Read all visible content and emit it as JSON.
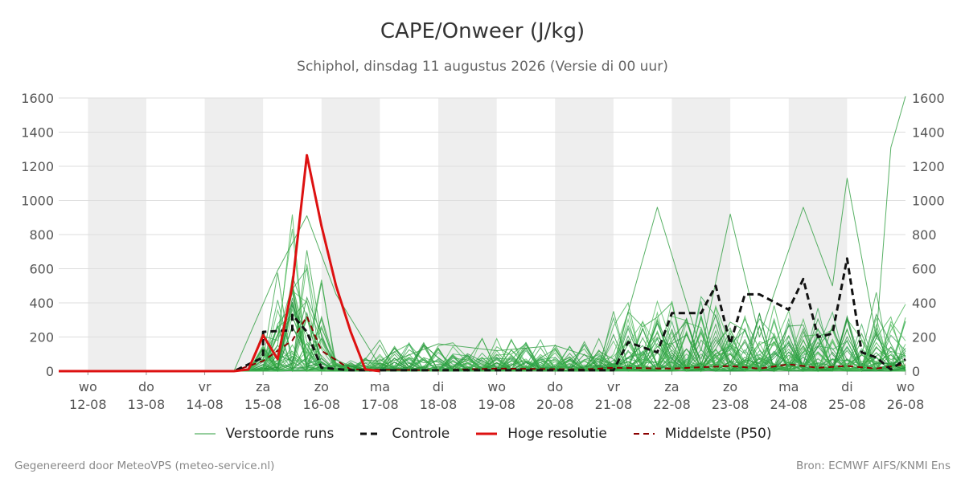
{
  "chart_data": {
    "type": "line",
    "title": "CAPE/Onweer (J/kg)",
    "subtitle": "Schiphol, dinsdag 11 augustus 2026 (Versie di 00 uur)",
    "ylim": [
      0,
      1600
    ],
    "yticks": [
      0,
      200,
      400,
      600,
      800,
      1000,
      1200,
      1400,
      1600
    ],
    "x_range": [
      "2026-08-11T12:00",
      "2026-08-26T00:00"
    ],
    "x_ticks": [
      {
        "date": "2026-08-12",
        "day": "wo",
        "label": "12-08"
      },
      {
        "date": "2026-08-13",
        "day": "do",
        "label": "13-08"
      },
      {
        "date": "2026-08-14",
        "day": "vr",
        "label": "14-08"
      },
      {
        "date": "2026-08-15",
        "day": "za",
        "label": "15-08"
      },
      {
        "date": "2026-08-16",
        "day": "zo",
        "label": "16-08"
      },
      {
        "date": "2026-08-17",
        "day": "ma",
        "label": "17-08"
      },
      {
        "date": "2026-08-18",
        "day": "di",
        "label": "18-08"
      },
      {
        "date": "2026-08-19",
        "day": "wo",
        "label": "19-08"
      },
      {
        "date": "2026-08-20",
        "day": "do",
        "label": "20-08"
      },
      {
        "date": "2026-08-21",
        "day": "vr",
        "label": "21-08"
      },
      {
        "date": "2026-08-22",
        "day": "za",
        "label": "22-08"
      },
      {
        "date": "2026-08-23",
        "day": "zo",
        "label": "23-08"
      },
      {
        "date": "2026-08-24",
        "day": "ma",
        "label": "24-08"
      },
      {
        "date": "2026-08-25",
        "day": "di",
        "label": "25-08"
      },
      {
        "date": "2026-08-26",
        "day": "wo",
        "label": "26-08"
      }
    ],
    "shaded_days": [
      "2026-08-12",
      "2026-08-14",
      "2026-08-16",
      "2026-08-18",
      "2026-08-20",
      "2026-08-22",
      "2026-08-24"
    ],
    "grid": true,
    "legend_position": "bottom",
    "series": [
      {
        "name": "Controle",
        "role": "control",
        "color": "#111111",
        "dash": "8,5",
        "width": 3,
        "points": [
          [
            "2026-08-11T12:00",
            0
          ],
          [
            "2026-08-14T12:00",
            0
          ],
          [
            "2026-08-15T00:00",
            80
          ],
          [
            "2026-08-15T00:00",
            230
          ],
          [
            "2026-08-15T12:00",
            240
          ],
          [
            "2026-08-15T12:00",
            330
          ],
          [
            "2026-08-15T18:00",
            230
          ],
          [
            "2026-08-16T00:00",
            20
          ],
          [
            "2026-08-16T12:00",
            5
          ],
          [
            "2026-08-21T00:00",
            5
          ],
          [
            "2026-08-21T06:00",
            170
          ],
          [
            "2026-08-21T18:00",
            110
          ],
          [
            "2026-08-22T00:00",
            340
          ],
          [
            "2026-08-22T12:00",
            340
          ],
          [
            "2026-08-22T18:00",
            500
          ],
          [
            "2026-08-23T00:00",
            160
          ],
          [
            "2026-08-23T06:00",
            450
          ],
          [
            "2026-08-23T12:00",
            450
          ],
          [
            "2026-08-24T00:00",
            360
          ],
          [
            "2026-08-24T06:00",
            540
          ],
          [
            "2026-08-24T12:00",
            200
          ],
          [
            "2026-08-24T18:00",
            220
          ],
          [
            "2026-08-25T00:00",
            660
          ],
          [
            "2026-08-25T06:00",
            110
          ],
          [
            "2026-08-25T12:00",
            80
          ],
          [
            "2026-08-25T18:00",
            10
          ],
          [
            "2026-08-26T00:00",
            70
          ]
        ]
      },
      {
        "name": "Hoge resolutie",
        "role": "hires",
        "color": "#dd1111",
        "dash": "",
        "width": 3,
        "points": [
          [
            "2026-08-11T12:00",
            0
          ],
          [
            "2026-08-14T12:00",
            0
          ],
          [
            "2026-08-14T18:00",
            10
          ],
          [
            "2026-08-15T00:00",
            210
          ],
          [
            "2026-08-15T06:00",
            70
          ],
          [
            "2026-08-15T12:00",
            500
          ],
          [
            "2026-08-15T18:00",
            1265
          ],
          [
            "2026-08-16T00:00",
            850
          ],
          [
            "2026-08-16T06:00",
            500
          ],
          [
            "2026-08-16T12:00",
            230
          ],
          [
            "2026-08-16T18:00",
            10
          ],
          [
            "2026-08-17T00:00",
            0
          ]
        ]
      },
      {
        "name": "Middelste (P50)",
        "role": "median",
        "color": "#8b0000",
        "dash": "7,5",
        "width": 2,
        "points": [
          [
            "2026-08-11T12:00",
            0
          ],
          [
            "2026-08-14T12:00",
            0
          ],
          [
            "2026-08-15T00:00",
            60
          ],
          [
            "2026-08-15T12:00",
            180
          ],
          [
            "2026-08-15T18:00",
            320
          ],
          [
            "2026-08-16T00:00",
            120
          ],
          [
            "2026-08-16T12:00",
            10
          ],
          [
            "2026-08-18T00:00",
            5
          ],
          [
            "2026-08-19T00:00",
            15
          ],
          [
            "2026-08-20T12:00",
            10
          ],
          [
            "2026-08-21T00:00",
            20
          ],
          [
            "2026-08-22T00:00",
            15
          ],
          [
            "2026-08-23T00:00",
            30
          ],
          [
            "2026-08-23T12:00",
            15
          ],
          [
            "2026-08-24T00:00",
            40
          ],
          [
            "2026-08-24T12:00",
            20
          ],
          [
            "2026-08-25T00:00",
            30
          ],
          [
            "2026-08-25T12:00",
            15
          ],
          [
            "2026-08-26T00:00",
            40
          ]
        ]
      },
      {
        "name": "Verstoorde runs",
        "role": "ensemble-example",
        "color": "#2e9e3e",
        "dash": "",
        "width": 1,
        "points": [
          [
            "2026-08-14T12:00",
            0
          ],
          [
            "2026-08-15T06:00",
            590
          ],
          [
            "2026-08-15T18:00",
            910
          ],
          [
            "2026-08-16T06:00",
            450
          ],
          [
            "2026-08-17T00:00",
            30
          ],
          [
            "2026-08-18T00:00",
            160
          ],
          [
            "2026-08-19T00:00",
            120
          ],
          [
            "2026-08-20T00:00",
            150
          ],
          [
            "2026-08-21T00:00",
            40
          ],
          [
            "2026-08-21T18:00",
            960
          ],
          [
            "2026-08-22T12:00",
            120
          ],
          [
            "2026-08-23T00:00",
            920
          ],
          [
            "2026-08-23T12:00",
            200
          ],
          [
            "2026-08-24T06:00",
            960
          ],
          [
            "2026-08-24T18:00",
            500
          ],
          [
            "2026-08-25T00:00",
            1130
          ],
          [
            "2026-08-25T12:00",
            200
          ],
          [
            "2026-08-25T18:00",
            1310
          ],
          [
            "2026-08-26T00:00",
            1610
          ]
        ]
      }
    ],
    "legend": [
      {
        "label": "Verstoorde runs",
        "color": "#2e9e3e",
        "dash": "",
        "width": 1
      },
      {
        "label": "Controle",
        "color": "#111111",
        "dash": "8,5",
        "width": 3
      },
      {
        "label": "Hoge resolutie",
        "color": "#dd1111",
        "dash": "",
        "width": 3
      },
      {
        "label": "Middelste (P50)",
        "color": "#8b0000",
        "dash": "7,5",
        "width": 2
      }
    ]
  },
  "footer": {
    "left": "Gegenereerd door MeteoVPS (meteo-service.nl)",
    "right": "Bron: ECMWF AIFS/KNMI Ens"
  }
}
